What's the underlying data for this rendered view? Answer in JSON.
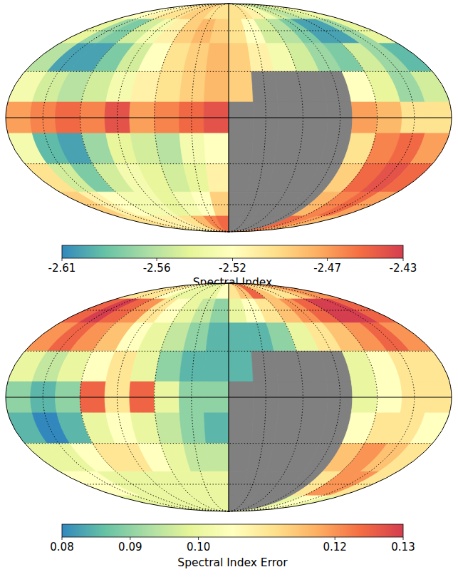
{
  "chart_data": [
    {
      "type": "heatmap",
      "tick_labels": false,
      "grid": true,
      "x": [
        170,
        150,
        130,
        110,
        90,
        70,
        50,
        30,
        10,
        -10,
        -30,
        -50,
        -70,
        -90,
        -110,
        -130,
        -150,
        -170
      ],
      "y": [
        80,
        60,
        40,
        20,
        0,
        -20,
        -40,
        -60,
        -80
      ],
      "xlim": [
        180,
        -180
      ],
      "ylim": [
        -90,
        90
      ],
      "xticks": [
        150,
        120,
        90,
        60,
        30,
        0,
        -30,
        -60,
        -90,
        -120,
        -150
      ],
      "yticks": [
        -60,
        -30,
        0,
        30,
        60
      ],
      "values": [
        [
          -2.52,
          -2.52,
          -2.51,
          -2.5,
          -2.5,
          -2.49,
          -2.49,
          -2.5,
          -2.5,
          -2.5,
          -2.5,
          -2.51,
          -2.53,
          -2.55,
          -2.56,
          -2.55,
          -2.54,
          -2.53
        ],
        [
          -2.54,
          -2.57,
          -2.58,
          -2.55,
          -2.53,
          -2.51,
          -2.49,
          -2.48,
          -2.49,
          -2.5,
          -2.52,
          -2.55,
          -2.56,
          -2.58,
          -2.6,
          -2.6,
          -2.57,
          -2.54
        ],
        [
          -2.56,
          -2.6,
          -2.6,
          -2.58,
          -2.55,
          -2.52,
          -2.5,
          -2.49,
          -2.48,
          -2.49,
          -2.51,
          -2.53,
          -2.55,
          -2.57,
          -2.58,
          -2.55,
          -2.57,
          -2.59
        ],
        [
          -2.53,
          -2.55,
          -2.56,
          -2.55,
          -2.53,
          -2.51,
          -2.5,
          -2.49,
          -2.48,
          -2.49,
          null,
          null,
          null,
          null,
          -2.52,
          -2.54,
          -2.57,
          -2.55
        ],
        [
          -2.47,
          -2.46,
          -2.45,
          -2.46,
          -2.44,
          -2.47,
          -2.46,
          -2.45,
          -2.44,
          null,
          null,
          null,
          null,
          null,
          -2.47,
          -2.48,
          -2.5,
          -2.5
        ],
        [
          -2.53,
          -2.59,
          -2.6,
          -2.57,
          -2.54,
          -2.55,
          -2.56,
          -2.53,
          -2.52,
          null,
          null,
          null,
          null,
          null,
          -2.5,
          -2.46,
          -2.45,
          -2.47
        ],
        [
          -2.5,
          -2.55,
          -2.58,
          -2.55,
          -2.53,
          -2.54,
          -2.55,
          -2.54,
          -2.51,
          null,
          null,
          null,
          null,
          null,
          -2.49,
          -2.45,
          -2.44,
          -2.45
        ],
        [
          -2.49,
          -2.51,
          -2.52,
          -2.53,
          -2.53,
          -2.54,
          -2.53,
          -2.52,
          -2.49,
          null,
          null,
          null,
          null,
          null,
          -2.48,
          -2.46,
          -2.45,
          -2.47
        ],
        [
          -2.5,
          -2.5,
          -2.51,
          -2.51,
          -2.51,
          -2.5,
          -2.48,
          -2.46,
          -2.45,
          null,
          null,
          null,
          null,
          null,
          -2.45,
          -2.46,
          -2.47,
          -2.48
        ]
      ],
      "zlabel": "Spectral Index",
      "zlim": [
        -2.61,
        -2.43
      ],
      "zticks": [
        -2.61,
        -2.56,
        -2.52,
        -2.47,
        -2.43
      ]
    },
    {
      "type": "heatmap",
      "tick_labels": false,
      "grid": true,
      "x": [
        170,
        150,
        130,
        110,
        90,
        70,
        50,
        30,
        10,
        -10,
        -30,
        -50,
        -70,
        -90,
        -110,
        -130,
        -150,
        -170
      ],
      "y": [
        80,
        60,
        40,
        20,
        0,
        -20,
        -40,
        -60,
        -80
      ],
      "xlim": [
        180,
        -180
      ],
      "ylim": [
        -90,
        90
      ],
      "xticks": [
        150,
        120,
        90,
        60,
        30,
        0,
        -30,
        -60,
        -90,
        -120,
        -150
      ],
      "yticks": [
        -60,
        -30,
        0,
        30,
        60
      ],
      "values": [
        [
          0.11,
          0.11,
          0.11,
          0.105,
          0.1,
          0.1,
          0.1,
          0.1,
          0.105,
          0.11,
          0.115,
          0.125,
          0.115,
          0.11,
          0.11,
          0.115,
          0.12,
          0.12
        ],
        [
          0.125,
          0.13,
          0.125,
          0.12,
          0.11,
          0.105,
          0.1,
          0.095,
          0.09,
          0.1,
          0.105,
          0.11,
          0.115,
          0.12,
          0.125,
          0.13,
          0.13,
          0.125
        ],
        [
          0.12,
          0.125,
          0.12,
          0.115,
          0.105,
          0.1,
          0.095,
          0.09,
          0.085,
          0.085,
          0.085,
          0.09,
          0.1,
          0.11,
          0.115,
          0.12,
          0.125,
          0.12
        ],
        [
          0.1,
          0.095,
          0.1,
          0.105,
          0.11,
          0.1,
          0.09,
          0.085,
          0.085,
          0.085,
          null,
          null,
          null,
          null,
          0.1,
          0.105,
          0.11,
          0.11
        ],
        [
          0.09,
          0.085,
          0.09,
          0.125,
          0.11,
          0.125,
          0.1,
          0.09,
          0.09,
          null,
          null,
          null,
          null,
          null,
          0.1,
          0.105,
          0.11,
          0.11
        ],
        [
          0.085,
          0.08,
          0.085,
          0.1,
          0.105,
          0.1,
          0.095,
          0.09,
          0.085,
          null,
          null,
          null,
          null,
          null,
          0.105,
          0.11,
          0.11,
          0.105
        ],
        [
          0.1,
          0.1,
          0.105,
          0.11,
          0.11,
          0.105,
          0.1,
          0.095,
          0.095,
          null,
          null,
          null,
          null,
          null,
          0.115,
          0.12,
          0.115,
          0.11
        ],
        [
          0.105,
          0.105,
          0.1,
          0.1,
          0.1,
          0.1,
          0.1,
          0.1,
          0.1,
          null,
          null,
          null,
          null,
          null,
          0.11,
          0.12,
          0.12,
          0.11
        ],
        [
          0.1,
          0.1,
          0.1,
          0.1,
          0.1,
          0.1,
          0.1,
          0.1,
          0.1,
          null,
          null,
          null,
          null,
          null,
          0.1,
          0.105,
          0.105,
          0.1
        ]
      ],
      "zlabel": "Spectral Index Error",
      "zlim": [
        0.08,
        0.13
      ],
      "zticks": [
        0.08,
        0.09,
        {
          "value": 0.1,
          "label": "0.10"
        },
        0.12,
        0.13
      ]
    }
  ]
}
